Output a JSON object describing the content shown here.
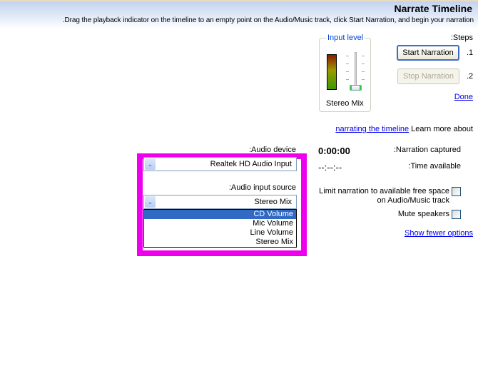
{
  "header": {
    "title": "Narrate Timeline",
    "instructions": ".Drag the playback indicator on the timeline to an empty point on the Audio/Music track, click Start Narration, and begin your narration"
  },
  "input_level": {
    "label": "Input level",
    "source": "Stereo Mix",
    "slider_level_percent": 0
  },
  "steps": {
    "label": ":Steps",
    "step1_num": ".1",
    "step2_num": ".2",
    "start_label": "Start Narration",
    "stop_label": "Stop Narration",
    "done_label": "Done"
  },
  "learn": {
    "link": "narrating the timeline",
    "text": "Learn more about"
  },
  "audio_device": {
    "label": ":Audio device",
    "value": "Realtek HD Audio Input"
  },
  "audio_input_source": {
    "label": ":Audio input source",
    "value": "Stereo Mix",
    "options": [
      "CD Volume",
      "Mic Volume",
      "Line Volume",
      "Stereo Mix"
    ],
    "highlighted": "CD Volume"
  },
  "narration": {
    "captured_label": ":Narration captured",
    "captured_value": "0:00:00",
    "available_label": ":Time available",
    "available_value": "--:--:--"
  },
  "options": {
    "limit_label_1": "Limit narration to available free space",
    "limit_label_2": "on Audio/Music track",
    "limit_checked": false,
    "mute_label": "Mute speakers",
    "mute_checked": false,
    "fewer_link": "Show fewer options"
  },
  "colors": {
    "highlight_frame": "#ee00ee",
    "selection": "#316ac5",
    "link": "#0000ee"
  }
}
